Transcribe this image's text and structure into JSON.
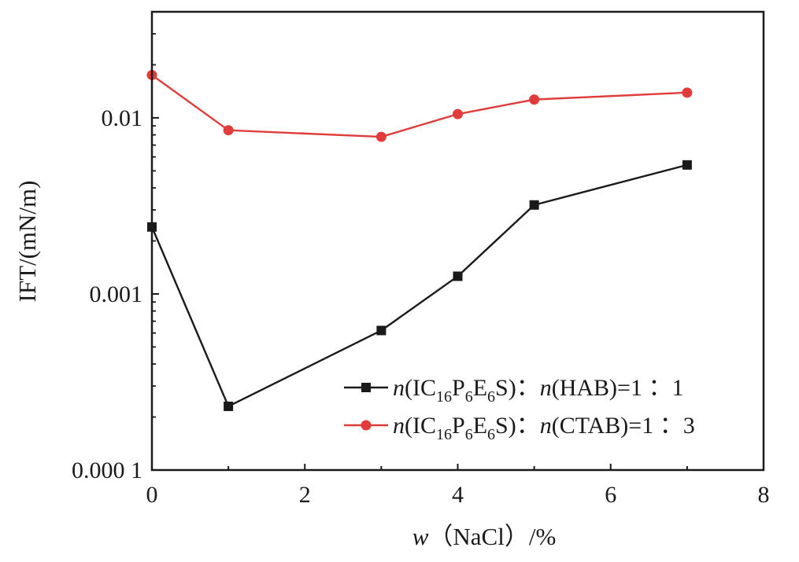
{
  "chart_data": {
    "type": "line",
    "xlabel": {
      "var": "w",
      "rest": "（NaCl）/%"
    },
    "ylabel": "IFT/(mN/m)",
    "xlim": [
      0,
      8
    ],
    "ylim": [
      0.0001,
      0.04
    ],
    "yscale": "log",
    "grid": false,
    "legend_position": "bottom-right",
    "x_ticks": [
      "0",
      "2",
      "4",
      "6",
      "8"
    ],
    "y_ticks": [
      {
        "value": 0.0001,
        "label": "0.000 1"
      },
      {
        "value": 0.001,
        "label": "0.001"
      },
      {
        "value": 0.01,
        "label": "0.01"
      }
    ],
    "series": [
      {
        "color": "#1a1a1a",
        "marker": "square",
        "legend": {
          "pre": "(IC",
          "s1": "16",
          "p": "P",
          "s2": "6",
          "e": "E",
          "s3": "6",
          "post": "S)：",
          "pre2": "(HAB)=1 ：1"
        },
        "x": [
          0,
          1,
          3,
          4,
          5,
          7
        ],
        "y": [
          0.0024,
          0.00023,
          0.00062,
          0.00126,
          0.0032,
          0.0054
        ]
      },
      {
        "color": "#e03c3c",
        "marker": "circle",
        "legend": {
          "pre": "(IC",
          "s1": "16",
          "p": "P",
          "s2": "6",
          "e": "E",
          "s3": "6",
          "post": "S)：",
          "pre2": "(CTAB)=1 ：3"
        },
        "x": [
          0,
          1,
          3,
          4,
          5,
          7
        ],
        "y": [
          0.0175,
          0.0085,
          0.0078,
          0.0105,
          0.0127,
          0.0139
        ]
      }
    ]
  }
}
